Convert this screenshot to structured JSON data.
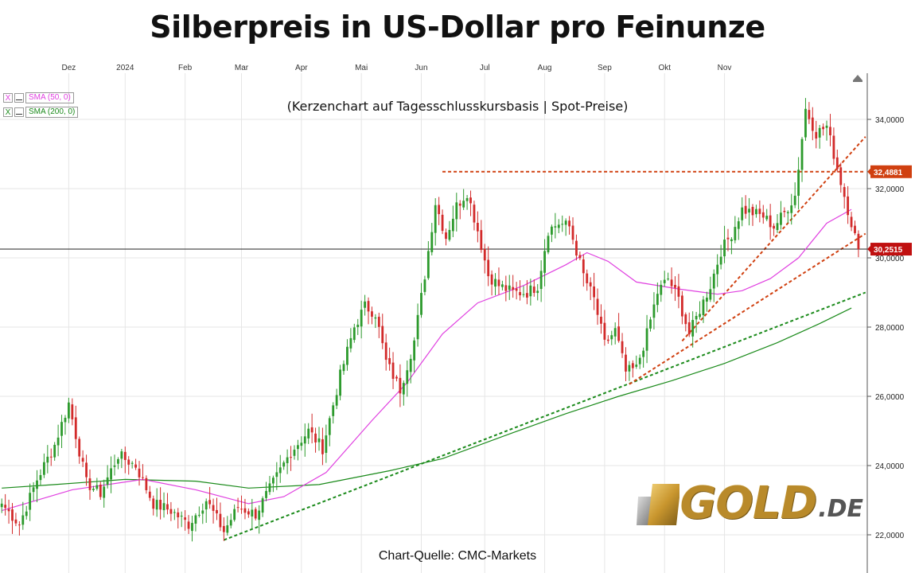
{
  "chart_data": {
    "type": "candlestick",
    "title": "Silberpreis in US-Dollar pro Feinunze",
    "subtitle": "(Kerzenchart auf Tagesschlusskursbasis | Spot-Preise)",
    "source": "Chart-Quelle: CMC-Markets",
    "x_labels": [
      "Dez",
      "2024",
      "Feb",
      "Mar",
      "Apr",
      "Mai",
      "Jun",
      "Jul",
      "Aug",
      "Sep",
      "Okt",
      "Nov"
    ],
    "y_ticks": [
      "22,0000",
      "24,0000",
      "26,0000",
      "28,0000",
      "30,0000",
      "32,0000",
      "34,0000"
    ],
    "y_tick_values": [
      22,
      24,
      26,
      28,
      30,
      32,
      34
    ],
    "ylim": [
      21.5,
      36.0
    ],
    "grid": true,
    "legend": [
      {
        "check": "X",
        "label": "SMA (50, 0)",
        "color": "#e040e0"
      },
      {
        "check": "X",
        "label": "SMA (200, 0)",
        "color": "#1a8a1a"
      }
    ],
    "price_labels": [
      {
        "text": "32,4881",
        "value": 32.4881,
        "color": "#d04010"
      },
      {
        "text": "30,2515",
        "value": 30.2515,
        "color": "#c01010"
      }
    ],
    "key_points": [
      {
        "x": 0,
        "close": 22.9
      },
      {
        "x": 5,
        "close": 22.3
      },
      {
        "x": 10,
        "close": 23.6
      },
      {
        "x": 15,
        "close": 24.6
      },
      {
        "x": 19,
        "close": 25.8
      },
      {
        "x": 24,
        "close": 23.5
      },
      {
        "x": 28,
        "close": 23.2
      },
      {
        "x": 33,
        "close": 24.3
      },
      {
        "x": 38,
        "close": 24.0
      },
      {
        "x": 43,
        "close": 22.9
      },
      {
        "x": 48,
        "close": 22.7
      },
      {
        "x": 53,
        "close": 22.3
      },
      {
        "x": 58,
        "close": 23.0
      },
      {
        "x": 63,
        "close": 22.1
      },
      {
        "x": 67,
        "close": 22.8
      },
      {
        "x": 72,
        "close": 22.6
      },
      {
        "x": 77,
        "close": 23.5
      },
      {
        "x": 82,
        "close": 24.4
      },
      {
        "x": 87,
        "close": 25.0
      },
      {
        "x": 91,
        "close": 24.5
      },
      {
        "x": 96,
        "close": 26.6
      },
      {
        "x": 100,
        "close": 28.0
      },
      {
        "x": 103,
        "close": 28.6
      },
      {
        "x": 106,
        "close": 28.4
      },
      {
        "x": 109,
        "close": 27.0
      },
      {
        "x": 113,
        "close": 26.2
      },
      {
        "x": 117,
        "close": 27.6
      },
      {
        "x": 120,
        "close": 29.5
      },
      {
        "x": 123,
        "close": 31.6
      },
      {
        "x": 126,
        "close": 30.6
      },
      {
        "x": 129,
        "close": 31.5
      },
      {
        "x": 132,
        "close": 31.9
      },
      {
        "x": 135,
        "close": 30.8
      },
      {
        "x": 138,
        "close": 29.5
      },
      {
        "x": 141,
        "close": 29.2
      },
      {
        "x": 145,
        "close": 29.0
      },
      {
        "x": 149,
        "close": 29.0
      },
      {
        "x": 152,
        "close": 29.2
      },
      {
        "x": 155,
        "close": 30.8
      },
      {
        "x": 158,
        "close": 31.0
      },
      {
        "x": 161,
        "close": 30.9
      },
      {
        "x": 165,
        "close": 29.5
      },
      {
        "x": 168,
        "close": 28.8
      },
      {
        "x": 171,
        "close": 27.5
      },
      {
        "x": 174,
        "close": 27.9
      },
      {
        "x": 177,
        "close": 26.7
      },
      {
        "x": 180,
        "close": 26.8
      },
      {
        "x": 183,
        "close": 27.8
      },
      {
        "x": 186,
        "close": 29.0
      },
      {
        "x": 189,
        "close": 29.4
      },
      {
        "x": 192,
        "close": 28.8
      },
      {
        "x": 195,
        "close": 27.8
      },
      {
        "x": 198,
        "close": 28.5
      },
      {
        "x": 201,
        "close": 29.2
      },
      {
        "x": 204,
        "close": 30.2
      },
      {
        "x": 207,
        "close": 30.7
      },
      {
        "x": 210,
        "close": 31.4
      },
      {
        "x": 213,
        "close": 31.3
      },
      {
        "x": 216,
        "close": 31.2
      },
      {
        "x": 219,
        "close": 30.9
      },
      {
        "x": 222,
        "close": 31.3
      },
      {
        "x": 225,
        "close": 31.8
      },
      {
        "x": 228,
        "close": 34.3
      },
      {
        "x": 231,
        "close": 33.6
      },
      {
        "x": 234,
        "close": 33.8
      },
      {
        "x": 237,
        "close": 32.6
      },
      {
        "x": 240,
        "close": 31.4
      },
      {
        "x": 243,
        "close": 30.25
      }
    ],
    "sma50": [
      [
        0,
        22.7
      ],
      [
        20,
        23.3
      ],
      [
        40,
        23.6
      ],
      [
        55,
        23.3
      ],
      [
        70,
        22.9
      ],
      [
        80,
        23.1
      ],
      [
        92,
        23.8
      ],
      [
        105,
        25.3
      ],
      [
        115,
        26.4
      ],
      [
        125,
        27.8
      ],
      [
        135,
        28.7
      ],
      [
        148,
        29.2
      ],
      [
        160,
        29.8
      ],
      [
        166,
        30.15
      ],
      [
        172,
        29.9
      ],
      [
        180,
        29.3
      ],
      [
        192,
        29.1
      ],
      [
        203,
        28.95
      ],
      [
        210,
        29.05
      ],
      [
        218,
        29.4
      ],
      [
        226,
        30.0
      ],
      [
        234,
        31.0
      ],
      [
        241,
        31.4
      ]
    ],
    "sma200": [
      [
        0,
        23.35
      ],
      [
        15,
        23.45
      ],
      [
        35,
        23.6
      ],
      [
        55,
        23.55
      ],
      [
        70,
        23.35
      ],
      [
        90,
        23.45
      ],
      [
        110,
        23.85
      ],
      [
        125,
        24.2
      ],
      [
        145,
        24.95
      ],
      [
        160,
        25.5
      ],
      [
        175,
        26.0
      ],
      [
        190,
        26.45
      ],
      [
        205,
        26.95
      ],
      [
        220,
        27.55
      ],
      [
        232,
        28.1
      ],
      [
        241,
        28.55
      ]
    ],
    "trendlines": [
      {
        "color": "#1a8a1a",
        "from": [
          63,
          21.85
        ],
        "to": [
          245,
          29.0
        ]
      },
      {
        "color": "#d04010",
        "from": [
          178,
          26.35
        ],
        "to": [
          245,
          30.7
        ]
      },
      {
        "color": "#d04010",
        "from": [
          193,
          27.6
        ],
        "to": [
          245,
          33.5
        ]
      },
      {
        "color": "#d04010",
        "from": [
          125,
          32.4881
        ],
        "to": [
          245,
          32.4881
        ]
      }
    ],
    "last_price": 30.2515
  },
  "logo": {
    "word": "GOLD",
    "suffix": ".DE"
  }
}
